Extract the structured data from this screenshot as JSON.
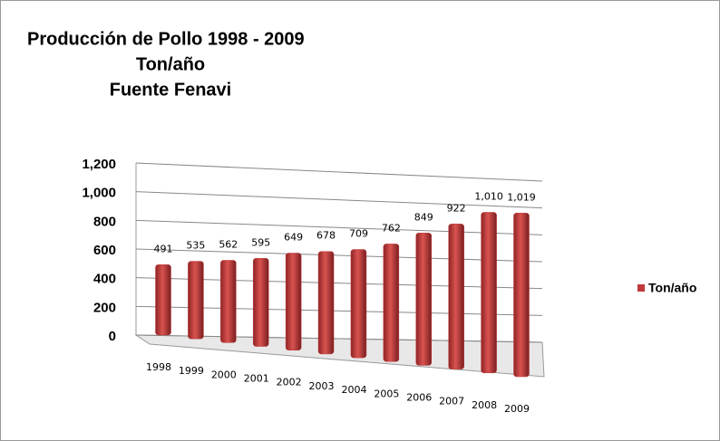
{
  "chart_data": {
    "type": "bar",
    "title": [
      "Producción de Pollo 1998 - 2009",
      "Ton/año",
      "Fuente  Fenavi"
    ],
    "categories": [
      "1998",
      "1999",
      "2000",
      "2001",
      "2002",
      "2003",
      "2004",
      "2005",
      "2006",
      "2007",
      "2008",
      "2009"
    ],
    "series": [
      {
        "name": "Ton/año",
        "color": "#c0393b",
        "values": [
          491,
          535,
          562,
          595,
          649,
          678,
          709,
          762,
          849,
          922,
          1010,
          1019
        ],
        "value_labels": [
          "491",
          "535",
          "562",
          "595",
          "649",
          "678",
          "709",
          "762",
          "849",
          "922",
          "1,010",
          "1,019"
        ]
      }
    ],
    "ylim": [
      0,
      1200
    ],
    "yticks": [
      0,
      200,
      400,
      600,
      800,
      {
        "value": 1000,
        "label": "1,000"
      },
      {
        "value": 1200,
        "label": "1,200"
      }
    ],
    "grid": true,
    "legend": "right"
  }
}
